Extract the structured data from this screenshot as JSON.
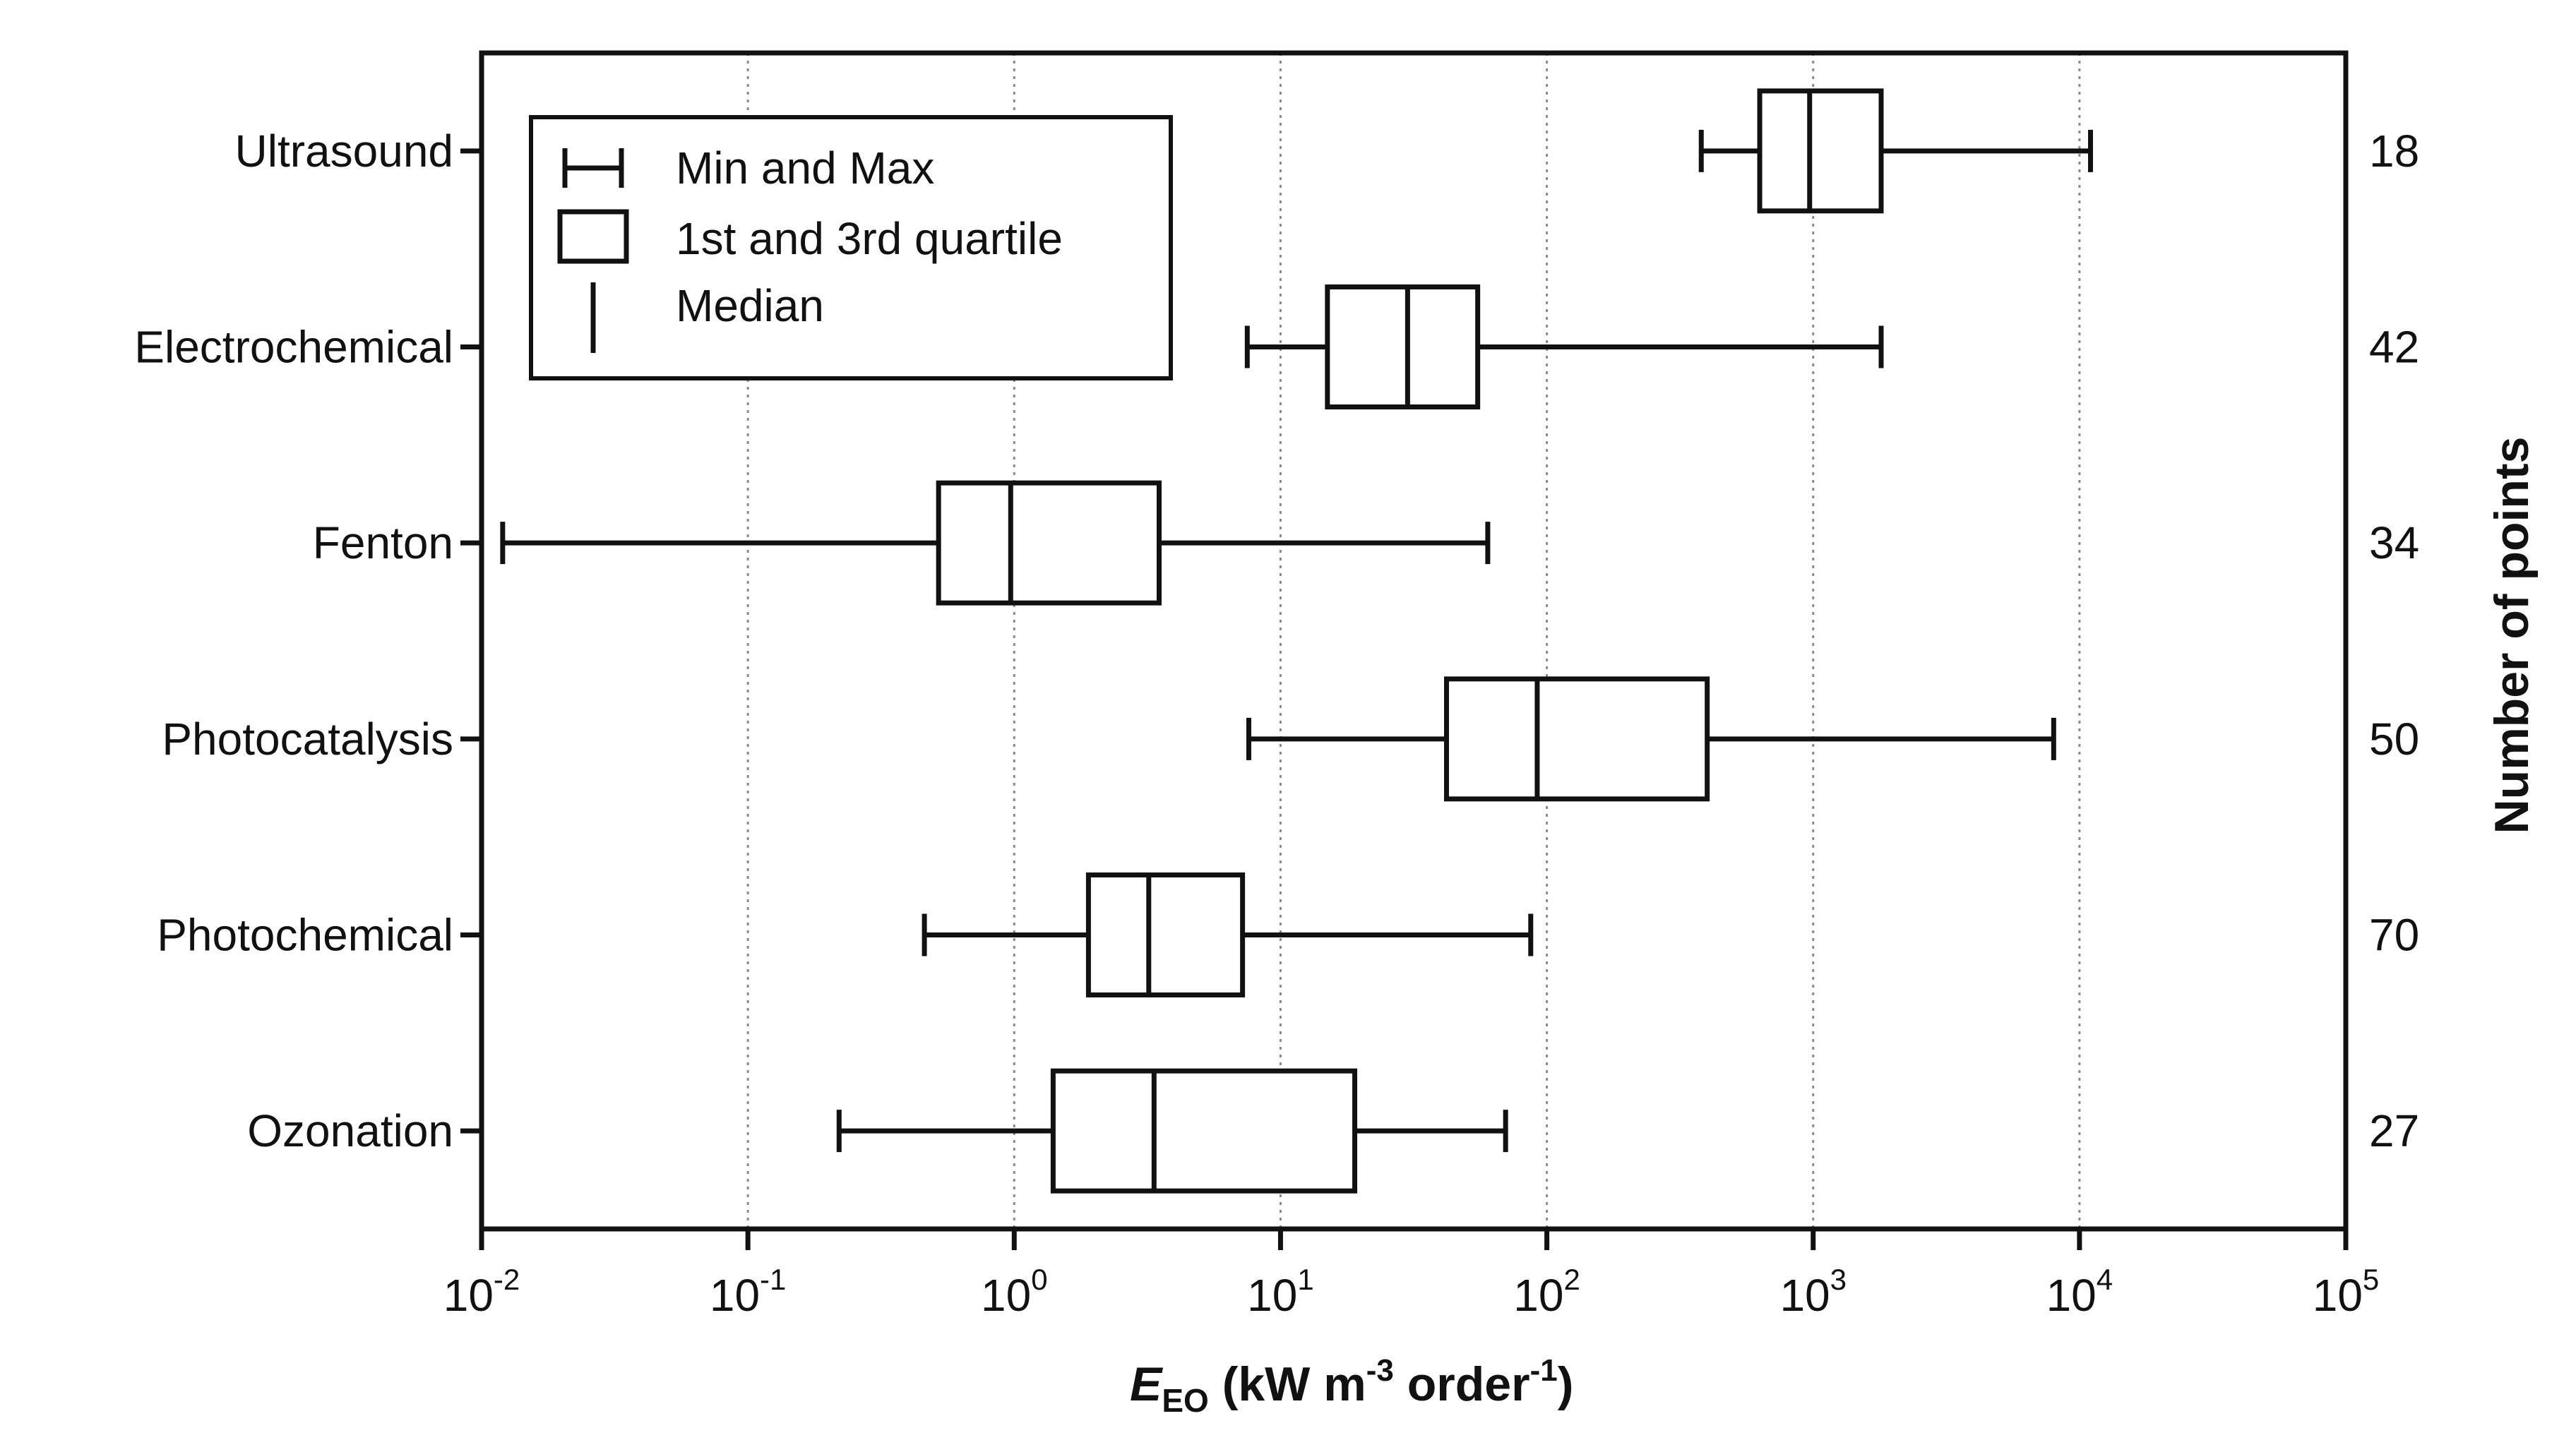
{
  "chart_data": {
    "type": "box",
    "x_scale": "log",
    "xlim": [
      0.01,
      100000
    ],
    "x_ticks": [
      {
        "base": "10",
        "exp": "-2"
      },
      {
        "base": "10",
        "exp": "-1"
      },
      {
        "base": "10",
        "exp": "0"
      },
      {
        "base": "10",
        "exp": "1"
      },
      {
        "base": "10",
        "exp": "2"
      },
      {
        "base": "10",
        "exp": "3"
      },
      {
        "base": "10",
        "exp": "4"
      },
      {
        "base": "10",
        "exp": "5"
      }
    ],
    "xlabel": {
      "symbol": "E",
      "subscript": "EO",
      "unit_pre": " (kW m",
      "unit_exp1": "-3",
      "unit_mid": " order",
      "unit_exp2": "-1",
      "unit_post": ")"
    },
    "right_axis_label": "Number of points",
    "grid": "vertical dotted",
    "legend": {
      "placement": "top-left",
      "items": [
        "Min and Max",
        "1st and 3rd quartile",
        "Median"
      ]
    },
    "categories": [
      "Ultrasound",
      "Electrochemical",
      "Fenton",
      "Photocatalysis",
      "Photochemical",
      "Ozonation"
    ],
    "boxes": [
      {
        "name": "Ultrasound",
        "min": 380,
        "q1": 630,
        "median": 970,
        "q3": 1800,
        "max": 11000,
        "n": "18"
      },
      {
        "name": "Electrochemical",
        "min": 7.5,
        "q1": 15,
        "median": 30,
        "q3": 55,
        "max": 1800,
        "n": "42"
      },
      {
        "name": "Fenton",
        "min": 0.012,
        "q1": 0.52,
        "median": 0.97,
        "q3": 3.5,
        "max": 60,
        "n": "34"
      },
      {
        "name": "Photocatalysis",
        "min": 7.6,
        "q1": 42,
        "median": 92,
        "q3": 400,
        "max": 8000,
        "n": "50"
      },
      {
        "name": "Photochemical",
        "min": 0.46,
        "q1": 1.9,
        "median": 3.2,
        "q3": 7.2,
        "max": 87,
        "n": "70"
      },
      {
        "name": "Ozonation",
        "min": 0.22,
        "q1": 1.4,
        "median": 3.35,
        "q3": 19,
        "max": 70,
        "n": "27"
      }
    ]
  }
}
